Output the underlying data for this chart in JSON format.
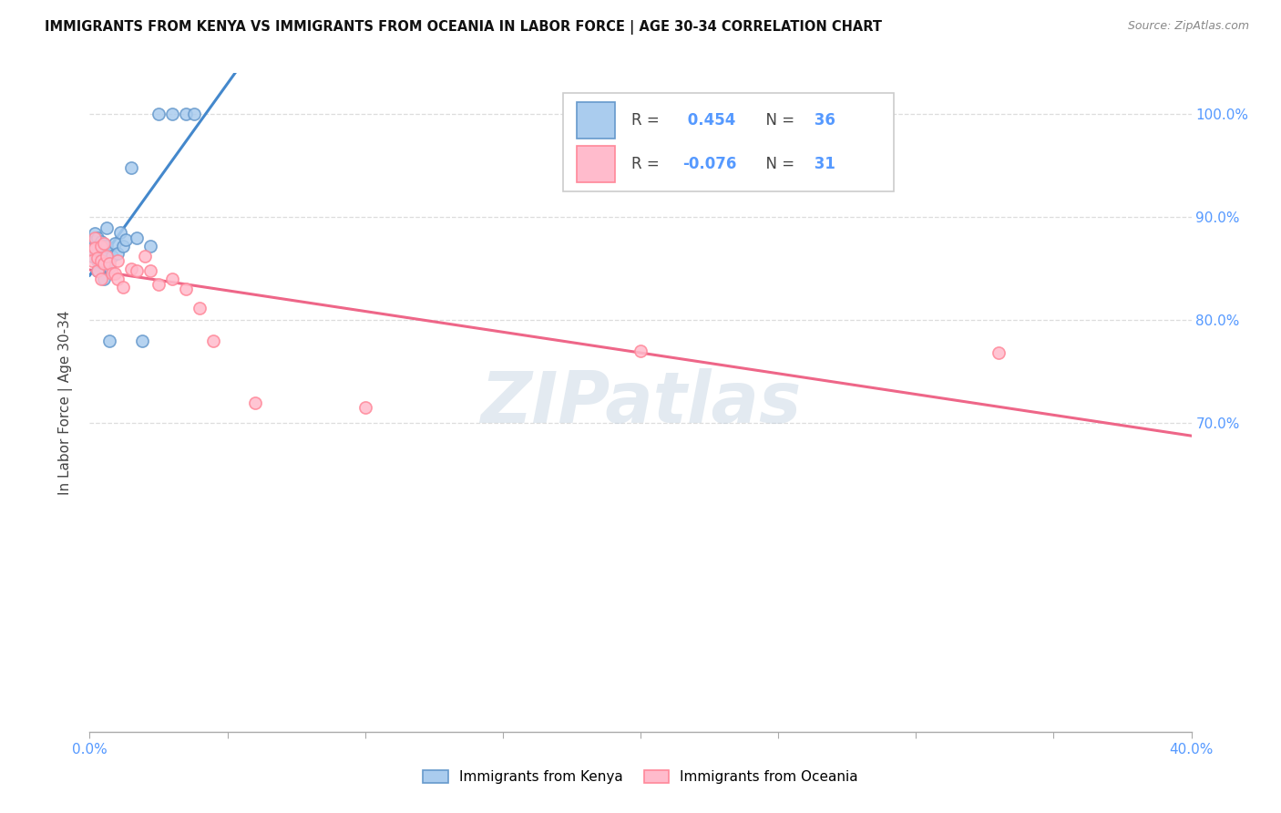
{
  "title": "IMMIGRANTS FROM KENYA VS IMMIGRANTS FROM OCEANIA IN LABOR FORCE | AGE 30-34 CORRELATION CHART",
  "source": "Source: ZipAtlas.com",
  "ylabel": "In Labor Force | Age 30-34",
  "legend_label1": "Immigrants from Kenya",
  "legend_label2": "Immigrants from Oceania",
  "r1": 0.454,
  "n1": 36,
  "r2": -0.076,
  "n2": 31,
  "color_kenya_fill": "#aaccee",
  "color_kenya_edge": "#6699cc",
  "color_oceania_fill": "#ffbbcc",
  "color_oceania_edge": "#ff8899",
  "color_line_kenya": "#4488cc",
  "color_line_oceania": "#ee6688",
  "color_axis_labels": "#5599ff",
  "watermark_text": "ZIPatlas",
  "watermark_color": "#bbccdd",
  "xlim_min": 0.0,
  "xlim_max": 0.4,
  "ylim_min": 0.4,
  "ylim_max": 1.04,
  "yticks": [
    0.7,
    0.8,
    0.9,
    1.0
  ],
  "ytick_labels": [
    "70.0%",
    "80.0%",
    "90.0%",
    "100.0%"
  ],
  "kenya_x": [
    0.001,
    0.001,
    0.002,
    0.002,
    0.002,
    0.003,
    0.003,
    0.003,
    0.003,
    0.003,
    0.004,
    0.004,
    0.004,
    0.005,
    0.005,
    0.005,
    0.005,
    0.006,
    0.006,
    0.006,
    0.007,
    0.007,
    0.008,
    0.009,
    0.01,
    0.011,
    0.012,
    0.013,
    0.015,
    0.017,
    0.019,
    0.022,
    0.025,
    0.03,
    0.035,
    0.038
  ],
  "kenya_y": [
    0.87,
    0.862,
    0.884,
    0.876,
    0.868,
    0.88,
    0.872,
    0.865,
    0.858,
    0.848,
    0.876,
    0.865,
    0.856,
    0.872,
    0.862,
    0.855,
    0.84,
    0.89,
    0.872,
    0.855,
    0.852,
    0.78,
    0.862,
    0.875,
    0.865,
    0.885,
    0.872,
    0.878,
    0.948,
    0.88,
    0.78,
    0.872,
    1.0,
    1.0,
    1.0,
    1.0
  ],
  "oceania_x": [
    0.001,
    0.001,
    0.002,
    0.002,
    0.003,
    0.003,
    0.004,
    0.004,
    0.004,
    0.005,
    0.005,
    0.006,
    0.007,
    0.008,
    0.009,
    0.01,
    0.01,
    0.012,
    0.015,
    0.017,
    0.02,
    0.022,
    0.025,
    0.03,
    0.035,
    0.04,
    0.045,
    0.06,
    0.1,
    0.2,
    0.33
  ],
  "oceania_y": [
    0.868,
    0.858,
    0.88,
    0.87,
    0.86,
    0.848,
    0.872,
    0.858,
    0.84,
    0.875,
    0.855,
    0.862,
    0.855,
    0.845,
    0.845,
    0.858,
    0.84,
    0.832,
    0.85,
    0.848,
    0.862,
    0.848,
    0.835,
    0.84,
    0.83,
    0.812,
    0.78,
    0.72,
    0.715,
    0.77,
    0.768
  ]
}
